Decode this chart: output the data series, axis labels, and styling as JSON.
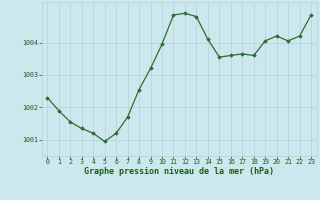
{
  "x": [
    0,
    1,
    2,
    3,
    4,
    5,
    6,
    7,
    8,
    9,
    10,
    11,
    12,
    13,
    14,
    15,
    16,
    17,
    18,
    19,
    20,
    21,
    22,
    23
  ],
  "y": [
    1002.3,
    1001.9,
    1001.55,
    1001.35,
    1001.2,
    1000.95,
    1001.2,
    1001.7,
    1002.55,
    1003.2,
    1003.95,
    1004.85,
    1004.9,
    1004.8,
    1004.1,
    1003.55,
    1003.6,
    1003.65,
    1003.6,
    1004.05,
    1004.2,
    1004.05,
    1004.2,
    1004.85
  ],
  "line_color": "#2d6e2d",
  "marker": "D",
  "marker_size": 1.8,
  "line_width": 0.9,
  "bg_color": "#cce8ee",
  "grid_color": "#b0d4d4",
  "xlabel": "Graphe pression niveau de la mer (hPa)",
  "xlabel_color": "#1a5c1a",
  "xlabel_fontsize": 6.0,
  "tick_color": "#1a5c1a",
  "tick_fontsize": 4.8,
  "ylim": [
    1000.5,
    1005.25
  ],
  "yticks": [
    1001,
    1002,
    1003,
    1004
  ],
  "xlim": [
    -0.5,
    23.5
  ],
  "xticks": [
    0,
    1,
    2,
    3,
    4,
    5,
    6,
    7,
    8,
    9,
    10,
    11,
    12,
    13,
    14,
    15,
    16,
    17,
    18,
    19,
    20,
    21,
    22,
    23
  ]
}
